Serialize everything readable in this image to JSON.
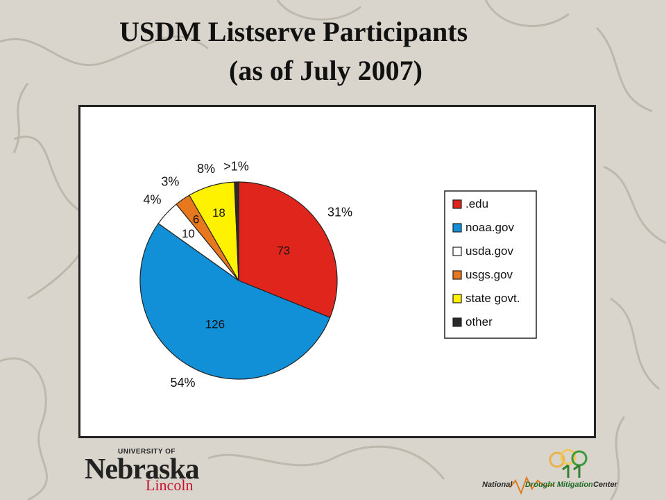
{
  "slide": {
    "title_line1": "USDM Listserve Participants",
    "title_line2": "(as of July 2007)"
  },
  "chart_data": {
    "type": "pie",
    "title": "",
    "slices": [
      {
        "name": ".edu",
        "count": "73",
        "percent": "31%",
        "value": 73,
        "color": "#e0261c"
      },
      {
        "name": "noaa.gov",
        "count": "126",
        "percent": "54%",
        "value": 126,
        "color": "#118fd7"
      },
      {
        "name": "usda.gov",
        "count": "10",
        "percent": "4%",
        "value": 10,
        "color": "#ffffff"
      },
      {
        "name": "usgs.gov",
        "count": "6",
        "percent": "3%",
        "value": 6,
        "color": "#e8781e"
      },
      {
        "name": "state govt.",
        "count": "18",
        "percent": "8%",
        "value": 18,
        "color": "#fff200"
      },
      {
        "name": "other",
        "count": "",
        "percent": ">1%",
        "value": 1.6,
        "color": "#2a2a2a"
      }
    ],
    "legend_position": "right"
  },
  "logos": {
    "unl": {
      "university": "UNIVERSITY OF",
      "name": "Nebraska",
      "city": "Lincoln"
    },
    "ndmc": {
      "national": "National",
      "drought_mitigation": "Drought Mitigation",
      "center": "Center"
    }
  }
}
